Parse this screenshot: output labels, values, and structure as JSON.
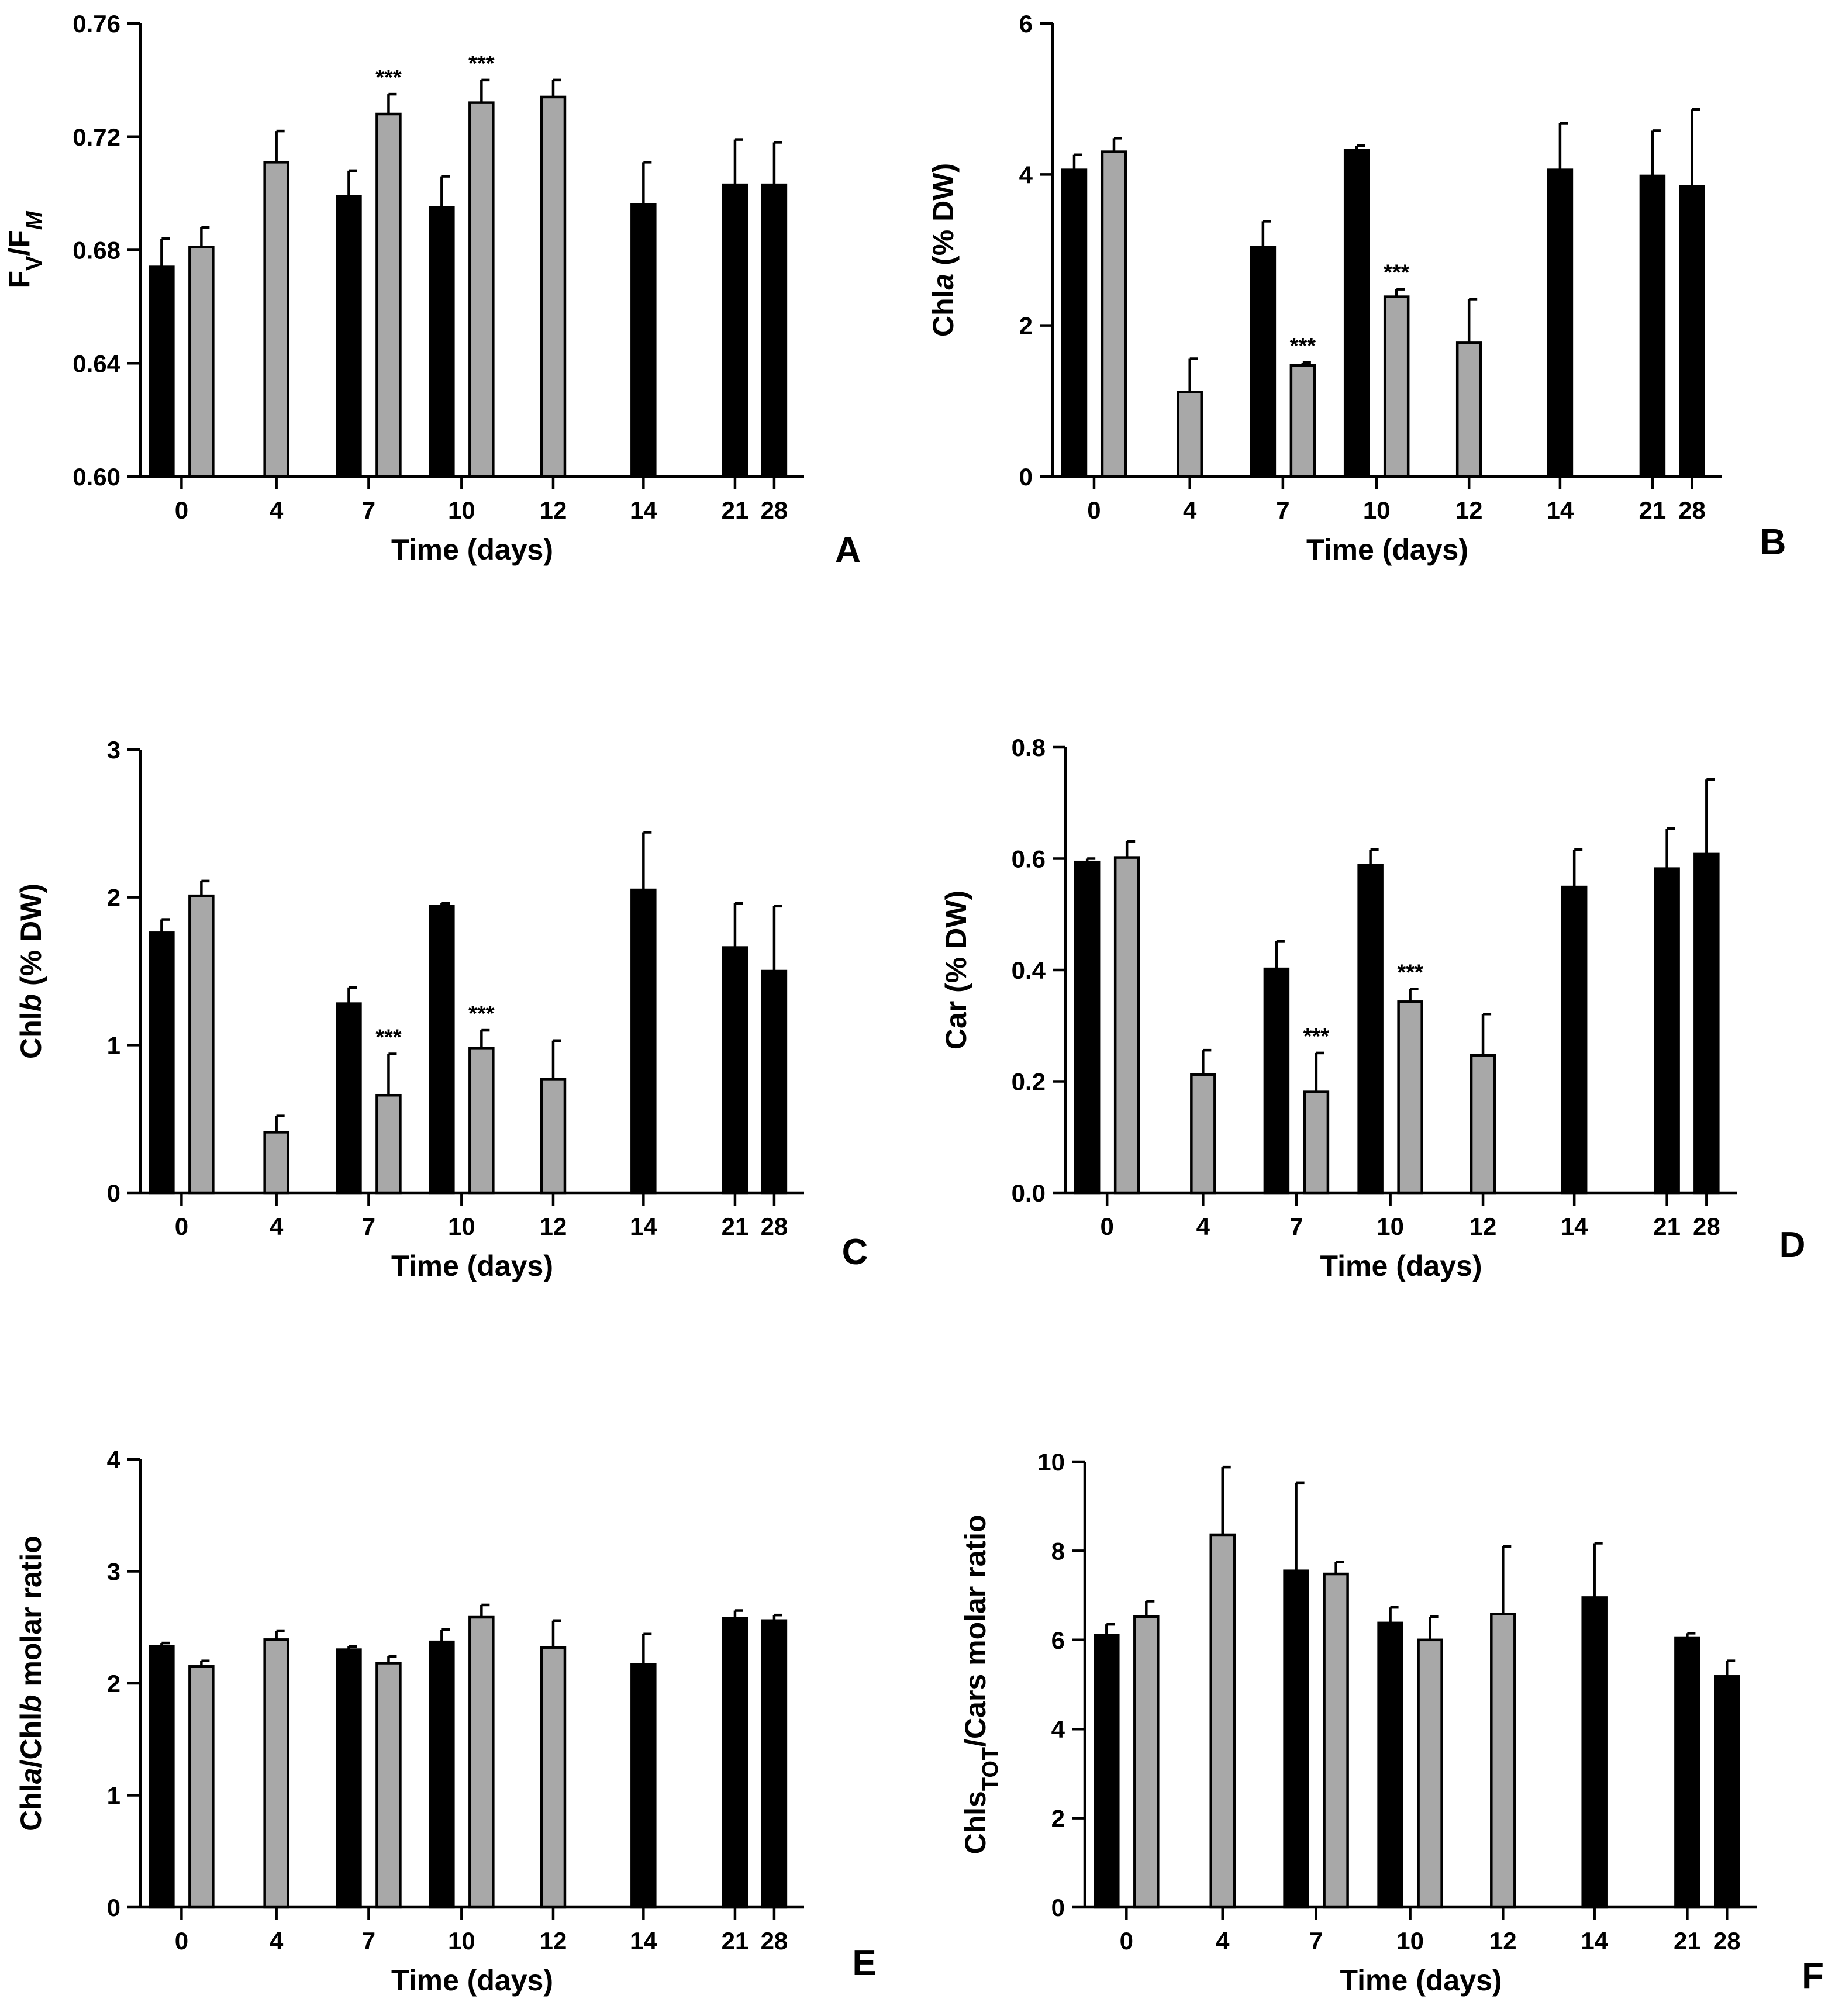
{
  "colors": {
    "series1": "#000000",
    "series2": "#a8a8a8"
  },
  "chart_data": [
    {
      "panel": "A",
      "type": "bar",
      "xlabel": "Time (days)",
      "ylabel_parts": [
        {
          "t": "F"
        },
        {
          "t": "V",
          "sub": true
        },
        {
          "t": "/F"
        },
        {
          "t": "M",
          "sub": true,
          "italic": true
        }
      ],
      "ylim": [
        0.6,
        0.76
      ],
      "yticks": [
        "0.60",
        "0.64",
        "0.68",
        "0.72",
        "0.76"
      ],
      "categories": [
        "0",
        "4",
        "7",
        "10",
        "12",
        "14",
        "21",
        "28"
      ],
      "series": [
        {
          "name": "series1",
          "values": [
            0.674,
            null,
            0.699,
            0.695,
            null,
            0.696,
            0.703,
            0.703
          ],
          "errors": [
            0.01,
            null,
            0.009,
            0.011,
            null,
            0.015,
            0.016,
            0.015
          ]
        },
        {
          "name": "series2",
          "values": [
            0.681,
            0.711,
            0.728,
            0.732,
            0.734,
            null,
            null,
            null
          ],
          "errors": [
            0.007,
            0.011,
            0.007,
            0.008,
            0.006,
            null,
            null,
            null
          ]
        }
      ],
      "annotations": [
        {
          "category": "7",
          "series": 1,
          "text": "***"
        },
        {
          "category": "10",
          "series": 1,
          "text": "***"
        }
      ]
    },
    {
      "panel": "B",
      "type": "bar",
      "xlabel": "Time (days)",
      "ylabel_parts": [
        {
          "t": "Chl"
        },
        {
          "t": "a",
          "italic": true
        },
        {
          "t": " (% DW)"
        }
      ],
      "ylim": [
        0,
        6
      ],
      "yticks": [
        "0",
        "2",
        "4",
        "6"
      ],
      "categories": [
        "0",
        "4",
        "7",
        "10",
        "12",
        "14",
        "21",
        "28"
      ],
      "series": [
        {
          "name": "series1",
          "values": [
            4.06,
            null,
            3.04,
            4.32,
            null,
            4.06,
            3.98,
            3.84
          ],
          "errors": [
            0.2,
            null,
            0.34,
            0.06,
            null,
            0.62,
            0.6,
            1.02
          ]
        },
        {
          "name": "series2",
          "values": [
            4.3,
            1.12,
            1.47,
            2.38,
            1.77,
            null,
            null,
            null
          ],
          "errors": [
            0.18,
            0.44,
            0.04,
            0.1,
            0.58,
            null,
            null,
            null
          ]
        }
      ],
      "annotations": [
        {
          "category": "7",
          "series": 1,
          "text": "***"
        },
        {
          "category": "10",
          "series": 1,
          "text": "***"
        }
      ]
    },
    {
      "panel": "C",
      "type": "bar",
      "xlabel": "Time (days)",
      "ylabel_parts": [
        {
          "t": "Chl"
        },
        {
          "t": "b",
          "italic": true
        },
        {
          "t": " (% DW)"
        }
      ],
      "ylim": [
        0,
        3
      ],
      "yticks": [
        "0",
        "1",
        "2",
        "3"
      ],
      "categories": [
        "0",
        "4",
        "7",
        "10",
        "12",
        "14",
        "21",
        "28"
      ],
      "series": [
        {
          "name": "series1",
          "values": [
            1.76,
            null,
            1.28,
            1.94,
            null,
            2.05,
            1.66,
            1.5
          ],
          "errors": [
            0.09,
            null,
            0.11,
            0.02,
            null,
            0.39,
            0.3,
            0.44
          ]
        },
        {
          "name": "series2",
          "values": [
            2.01,
            0.41,
            0.66,
            0.98,
            0.77,
            null,
            null,
            null
          ],
          "errors": [
            0.1,
            0.11,
            0.28,
            0.12,
            0.26,
            null,
            null,
            null
          ]
        }
      ],
      "annotations": [
        {
          "category": "7",
          "series": 1,
          "text": "***"
        },
        {
          "category": "10",
          "series": 1,
          "text": "***"
        }
      ]
    },
    {
      "panel": "D",
      "type": "bar",
      "xlabel": "Time (days)",
      "ylabel_parts": [
        {
          "t": "Car (% DW)"
        }
      ],
      "ylim": [
        0,
        0.8
      ],
      "yticks": [
        "0.0",
        "0.2",
        "0.4",
        "0.6",
        "0.8"
      ],
      "categories": [
        "0",
        "4",
        "7",
        "10",
        "12",
        "14",
        "21",
        "28"
      ],
      "series": [
        {
          "name": "series1",
          "values": [
            0.594,
            null,
            0.402,
            0.588,
            null,
            0.549,
            0.582,
            0.608
          ],
          "errors": [
            0.006,
            null,
            0.05,
            0.028,
            null,
            0.067,
            0.072,
            0.134
          ]
        },
        {
          "name": "series2",
          "values": [
            0.602,
            0.212,
            0.181,
            0.343,
            0.247,
            null,
            null,
            null
          ],
          "errors": [
            0.029,
            0.044,
            0.07,
            0.023,
            0.074,
            null,
            null,
            null
          ]
        }
      ],
      "annotations": [
        {
          "category": "7",
          "series": 1,
          "text": "***"
        },
        {
          "category": "10",
          "series": 1,
          "text": "***"
        }
      ]
    },
    {
      "panel": "E",
      "type": "bar",
      "xlabel": "Time (days)",
      "ylabel_parts": [
        {
          "t": "Chl"
        },
        {
          "t": "a",
          "italic": true
        },
        {
          "t": "/Chl"
        },
        {
          "t": "b",
          "italic": true
        },
        {
          "t": " molar ratio"
        }
      ],
      "ylim": [
        0,
        4
      ],
      "yticks": [
        "0",
        "1",
        "2",
        "3",
        "4"
      ],
      "categories": [
        "0",
        "4",
        "7",
        "10",
        "12",
        "14",
        "21",
        "28"
      ],
      "series": [
        {
          "name": "series1",
          "values": [
            2.33,
            null,
            2.3,
            2.37,
            null,
            2.17,
            2.58,
            2.56
          ],
          "errors": [
            0.03,
            null,
            0.03,
            0.11,
            null,
            0.27,
            0.07,
            0.05
          ]
        },
        {
          "name": "series2",
          "values": [
            2.15,
            2.39,
            2.18,
            2.59,
            2.32,
            null,
            null,
            null
          ],
          "errors": [
            0.05,
            0.08,
            0.06,
            0.11,
            0.24,
            null,
            null,
            null
          ]
        }
      ],
      "annotations": []
    },
    {
      "panel": "F",
      "type": "bar",
      "xlabel": "Time (days)",
      "ylabel_parts": [
        {
          "t": "Chls"
        },
        {
          "t": "TOT",
          "sub": true
        },
        {
          "t": "/Cars molar ratio"
        }
      ],
      "ylim": [
        0,
        10
      ],
      "yticks": [
        "0",
        "2",
        "4",
        "6",
        "8",
        "10"
      ],
      "categories": [
        "0",
        "4",
        "7",
        "10",
        "12",
        "14",
        "21",
        "28"
      ],
      "series": [
        {
          "name": "series1",
          "values": [
            6.1,
            null,
            7.55,
            6.38,
            null,
            6.95,
            6.05,
            5.18
          ],
          "errors": [
            0.25,
            null,
            1.98,
            0.35,
            null,
            1.22,
            0.1,
            0.35
          ]
        },
        {
          "name": "series2",
          "values": [
            6.52,
            8.36,
            7.48,
            6.0,
            6.58,
            null,
            null,
            null
          ],
          "errors": [
            0.35,
            1.52,
            0.27,
            0.52,
            1.52,
            null,
            null,
            null
          ]
        }
      ],
      "annotations": []
    }
  ]
}
